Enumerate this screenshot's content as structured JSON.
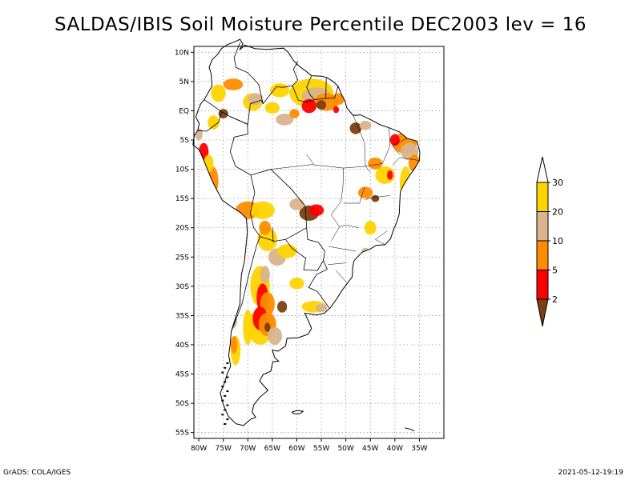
{
  "title": "SALDAS/IBIS Soil Moisture Percentile DEC2003 lev = 16",
  "footer": {
    "left": "GrADS: COLA/IGES",
    "right": "2021-05-12-19:19"
  },
  "colors": {
    "c2": "#7a3f12",
    "c5": "#ff0000",
    "c10": "#ff8c00",
    "c20": "#d9b48c",
    "c30": "#ffd400",
    "c30plus": "#ffffff"
  },
  "chart_data": {
    "type": "map",
    "title": "SALDAS/IBIS Soil Moisture Percentile DEC2003 lev = 16",
    "lon_range": [
      -81,
      -30
    ],
    "lat_range": [
      -56,
      11
    ],
    "lon_ticks": [
      "80W",
      "75W",
      "70W",
      "65W",
      "60W",
      "55W",
      "50W",
      "45W",
      "40W",
      "35W"
    ],
    "lat_ticks": [
      "10N",
      "5N",
      "EQ",
      "5S",
      "10S",
      "15S",
      "20S",
      "25S",
      "30S",
      "35S",
      "40S",
      "45S",
      "50S",
      "55S"
    ],
    "legend": {
      "labels": [
        "2",
        "5",
        "10",
        "20",
        "30"
      ],
      "classes": [
        "<2",
        "2-5",
        "5-10",
        "10-20",
        "20-30",
        ">30"
      ]
    }
  }
}
